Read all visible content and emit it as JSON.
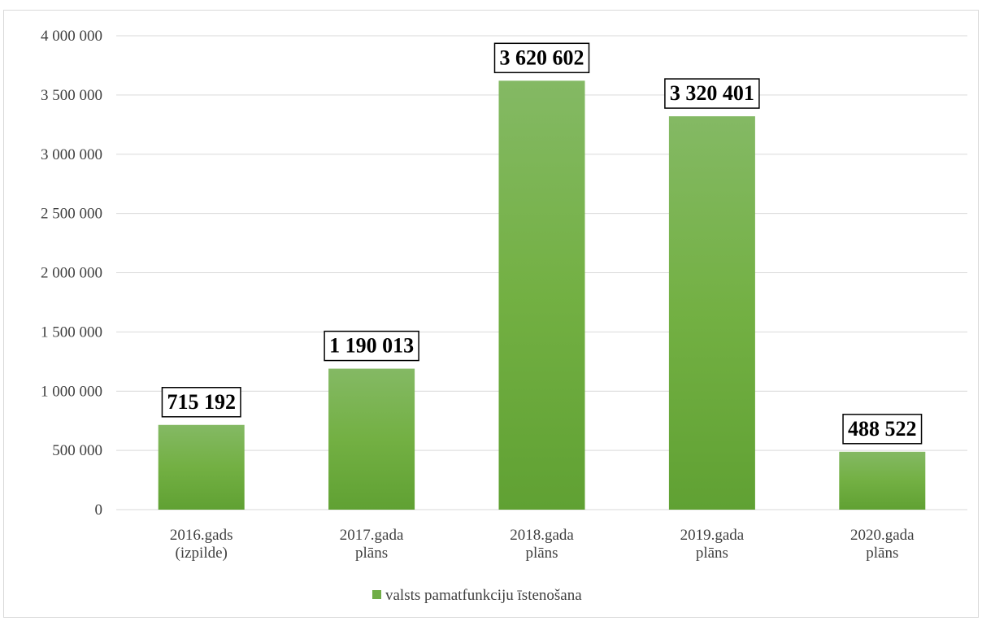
{
  "chart_data": {
    "type": "bar",
    "categories": [
      [
        "2016.gads",
        "(izpilde)"
      ],
      [
        "2017.gada",
        "plāns"
      ],
      [
        "2018.gada",
        "plāns"
      ],
      [
        "2019.gada",
        "plāns"
      ],
      [
        "2020.gada",
        "plāns"
      ]
    ],
    "series": [
      {
        "name": "valsts pamatfunkciju īstenošana",
        "values": [
          715192,
          1190013,
          3620602,
          3320401,
          488522
        ],
        "color": "#70ad47"
      }
    ],
    "data_labels": [
      "715 192",
      "1 190 013",
      "3 620 602",
      "3 320 401",
      "488 522"
    ],
    "y_ticks": [
      {
        "value": 0,
        "label": "0"
      },
      {
        "value": 500000,
        "label": "500 000"
      },
      {
        "value": 1000000,
        "label": "1 000 000"
      },
      {
        "value": 1500000,
        "label": "1 500 000"
      },
      {
        "value": 2000000,
        "label": "2 000 000"
      },
      {
        "value": 2500000,
        "label": "2 500 000"
      },
      {
        "value": 3000000,
        "label": "3 000 000"
      },
      {
        "value": 3500000,
        "label": "3 500 000"
      },
      {
        "value": 4000000,
        "label": "4 000 000"
      }
    ],
    "ylim": [
      0,
      4000000
    ],
    "grid": true,
    "legend": "bottom",
    "title": "",
    "xlabel": "",
    "ylabel": ""
  }
}
